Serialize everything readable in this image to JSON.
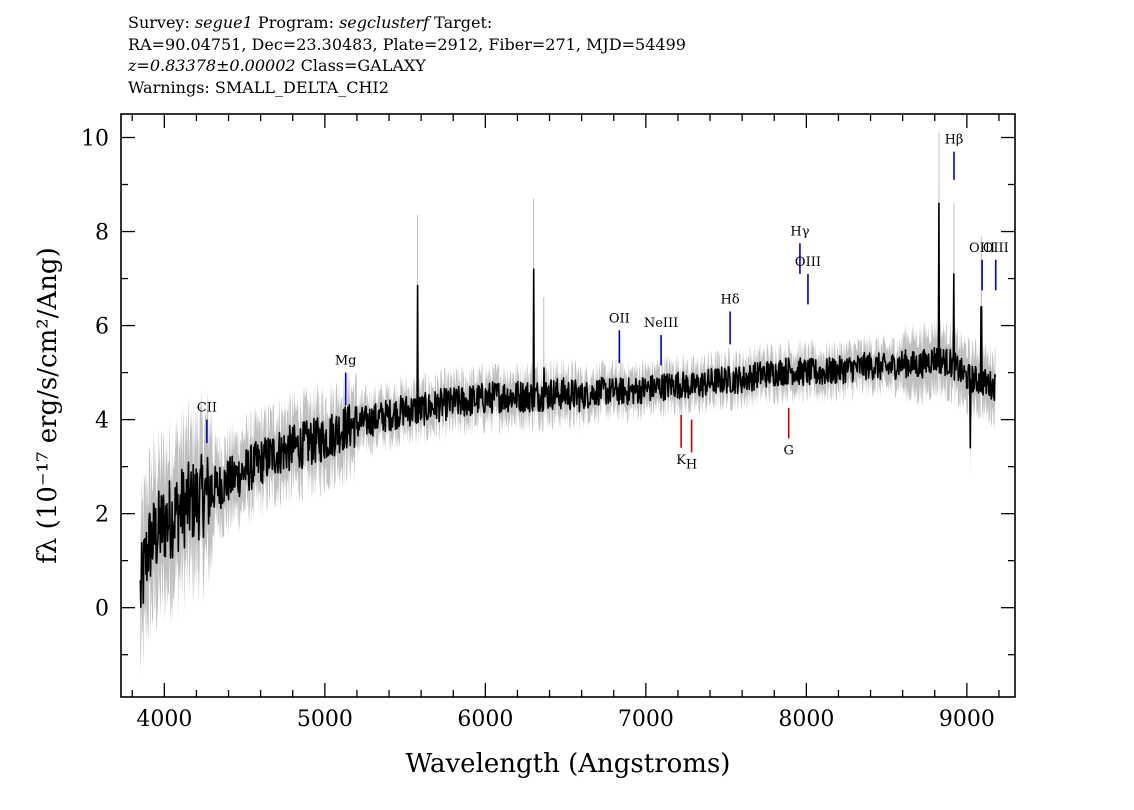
{
  "header": {
    "survey_label": "Survey:",
    "survey_value": "segue1",
    "program_label": "Program:",
    "program_value": "segclusterf",
    "target_label": "Target:",
    "coords": "RA=90.04751, Dec=23.30483, Plate=2912, Fiber=271, MJD=54499",
    "redshift": "z=0.83378±0.00002",
    "class": "Class=GALAXY",
    "warnings": "Warnings: SMALL_DELTA_CHI2"
  },
  "chart_data": {
    "type": "line",
    "xlabel": "Wavelength (Angstroms)",
    "ylabel": "fλ (10⁻¹⁷ erg/s/cm²/Ang)",
    "xlim": [
      3730,
      9300
    ],
    "ylim": [
      -1.9,
      10.5
    ],
    "x_ticks": [
      4000,
      5000,
      6000,
      7000,
      8000,
      9000
    ],
    "y_ticks": [
      0,
      2,
      4,
      6,
      8,
      10
    ],
    "grid": false,
    "colors": {
      "flux": "#000000",
      "error_band": "#bfbfbf",
      "emission": "#0000cc",
      "absorption": "#cc0000"
    },
    "flux_anchors": {
      "x": [
        3850,
        3900,
        4000,
        4100,
        4200,
        4300,
        4400,
        4500,
        4600,
        4700,
        4800,
        4900,
        5000,
        5100,
        5200,
        5300,
        5400,
        5500,
        5600,
        5700,
        5800,
        5900,
        6000,
        6100,
        6200,
        6300,
        6400,
        6500,
        6600,
        6700,
        6800,
        6900,
        7000,
        7100,
        7200,
        7300,
        7400,
        7500,
        7600,
        7700,
        7800,
        7900,
        8000,
        8100,
        8200,
        8300,
        8400,
        8500,
        8600,
        8700,
        8800,
        8900,
        9000,
        9100,
        9180
      ],
      "y": [
        0.3,
        1.3,
        1.8,
        2.1,
        2.3,
        2.5,
        2.7,
        2.9,
        3.1,
        3.3,
        3.4,
        3.5,
        3.6,
        3.8,
        3.9,
        4.0,
        4.1,
        4.2,
        4.2,
        4.3,
        4.35,
        4.4,
        4.45,
        4.5,
        4.5,
        4.5,
        4.55,
        4.55,
        4.5,
        4.6,
        4.6,
        4.6,
        4.65,
        4.7,
        4.75,
        4.7,
        4.8,
        4.85,
        4.85,
        4.95,
        5.0,
        5.05,
        5.0,
        5.0,
        5.05,
        5.1,
        5.15,
        5.1,
        5.2,
        5.15,
        5.3,
        5.2,
        4.9,
        4.8,
        4.7
      ]
    },
    "flux_spikes": [
      {
        "x": 5577,
        "y": 6.85
      },
      {
        "x": 6300,
        "y": 7.2
      },
      {
        "x": 6364,
        "y": 5.1
      },
      {
        "x": 8827,
        "y": 8.6
      },
      {
        "x": 8920,
        "y": 7.1
      },
      {
        "x": 9090,
        "y": 6.4
      },
      {
        "x": 9020,
        "y": 3.4
      }
    ],
    "line_markers": [
      {
        "label": "CII",
        "x": 4265,
        "y1": 3.5,
        "y2": 4.0,
        "kind": "emission"
      },
      {
        "label": "Mg",
        "x": 5130,
        "y1": 4.3,
        "y2": 5.0,
        "kind": "emission"
      },
      {
        "label": "OII",
        "x": 6835,
        "y1": 5.2,
        "y2": 5.9,
        "kind": "emission"
      },
      {
        "label": "NeIII",
        "x": 7095,
        "y1": 5.15,
        "y2": 5.8,
        "kind": "emission"
      },
      {
        "label": "Hδ",
        "x": 7525,
        "y1": 5.6,
        "y2": 6.3,
        "kind": "emission"
      },
      {
        "label": "Hγ",
        "x": 7960,
        "y1": 7.1,
        "y2": 7.75,
        "kind": "emission"
      },
      {
        "label": "OIII",
        "x": 8010,
        "y1": 6.45,
        "y2": 7.1,
        "kind": "emission"
      },
      {
        "label": "Hβ",
        "x": 8920,
        "y1": 9.1,
        "y2": 9.7,
        "kind": "emission"
      },
      {
        "label": "OIII",
        "x": 9095,
        "y1": 6.75,
        "y2": 7.4,
        "kind": "emission"
      },
      {
        "label": "OIII",
        "x": 9180,
        "y1": 6.75,
        "y2": 7.4,
        "kind": "emission"
      },
      {
        "label": "K",
        "x": 7220,
        "y1": 3.4,
        "y2": 4.1,
        "kind": "absorption"
      },
      {
        "label": "H",
        "x": 7285,
        "y1": 3.3,
        "y2": 4.0,
        "kind": "absorption"
      },
      {
        "label": "G",
        "x": 7890,
        "y1": 3.6,
        "y2": 4.25,
        "kind": "absorption"
      }
    ]
  }
}
